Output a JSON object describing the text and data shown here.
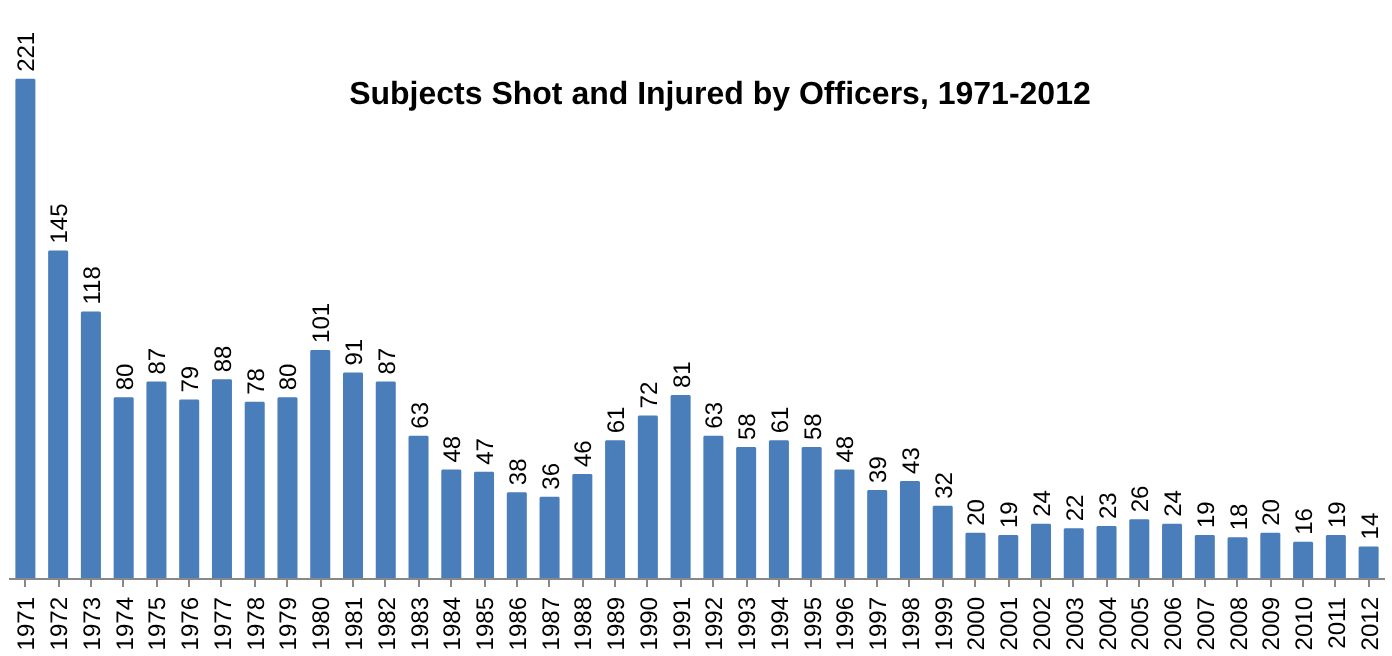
{
  "chart_data": {
    "type": "bar",
    "title": "Subjects Shot and Injured by Officers, 1971-2012",
    "categories": [
      "1971",
      "1972",
      "1973",
      "1974",
      "1975",
      "1976",
      "1977",
      "1978",
      "1979",
      "1980",
      "1981",
      "1982",
      "1983",
      "1984",
      "1985",
      "1986",
      "1987",
      "1988",
      "1989",
      "1990",
      "1991",
      "1992",
      "1993",
      "1994",
      "1995",
      "1996",
      "1997",
      "1998",
      "1999",
      "2000",
      "2001",
      "2002",
      "2003",
      "2004",
      "2005",
      "2006",
      "2007",
      "2008",
      "2009",
      "2010",
      "2011",
      "2012"
    ],
    "values": [
      221,
      145,
      118,
      80,
      87,
      79,
      88,
      78,
      80,
      101,
      91,
      87,
      63,
      48,
      47,
      38,
      36,
      46,
      61,
      72,
      81,
      63,
      58,
      61,
      58,
      48,
      39,
      43,
      32,
      20,
      19,
      24,
      22,
      23,
      26,
      24,
      19,
      18,
      20,
      16,
      19,
      14
    ],
    "color": "#4a7ebb",
    "data_labels": true,
    "grid": false
  }
}
